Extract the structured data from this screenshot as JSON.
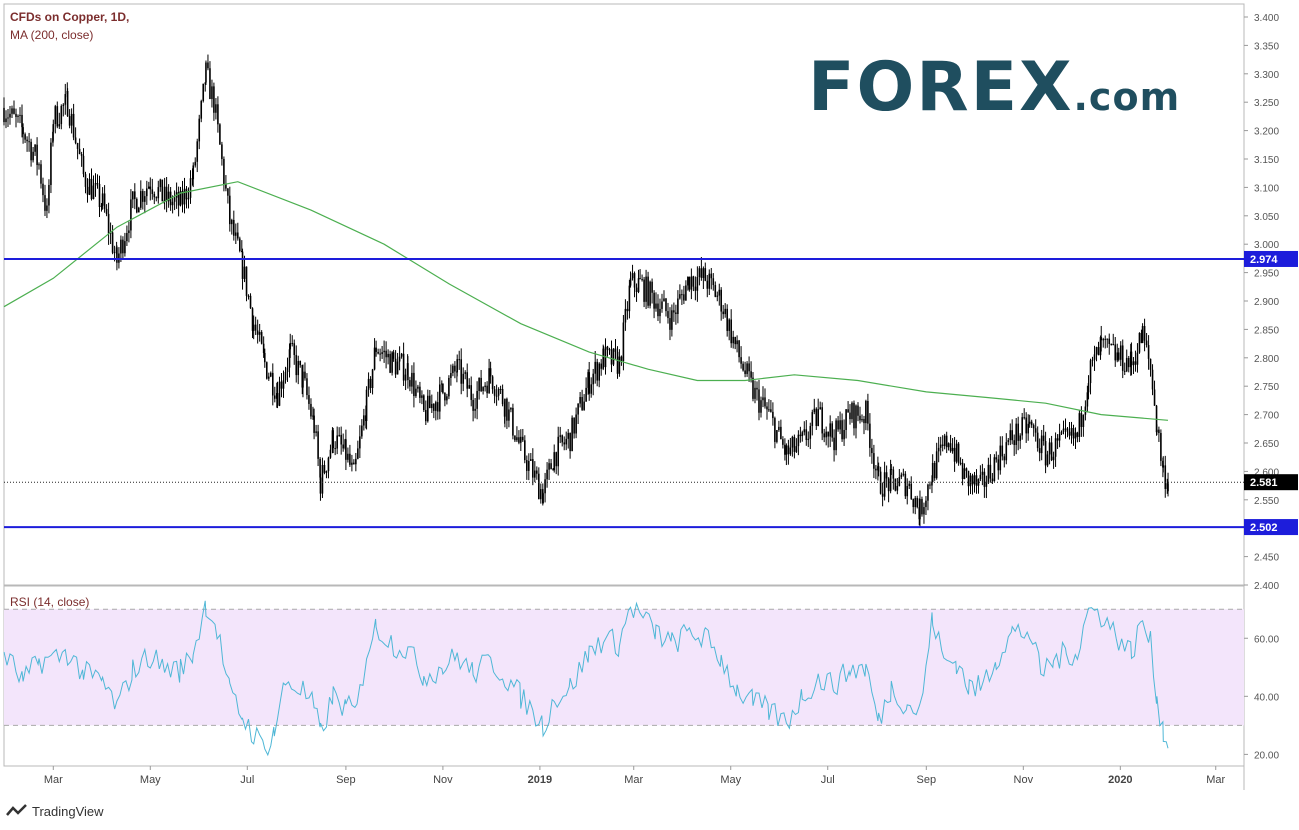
{
  "legend": {
    "symbol": "CFDs on Copper, 1D,",
    "ma": "MA (200, close)",
    "rsi": "RSI (14, close)"
  },
  "logo": {
    "main": "FOREX",
    "suffix": ".com"
  },
  "footer": {
    "brand": "TradingView"
  },
  "colors": {
    "candle": "#000000",
    "ma": "#4caf50",
    "level": "#1d1ddb",
    "rsi": "#4fb7d6",
    "rsi_band": "#f3e5fb",
    "logo": "#1f4e5f",
    "logo_accent": "#7cc242"
  },
  "chart_data": [
    {
      "type": "candlestick",
      "title": "CFDs on Copper, 1D,",
      "x_tick_labels": [
        "Mar",
        "May",
        "Jul",
        "Sep",
        "Nov",
        "2019",
        "Mar",
        "May",
        "Jul",
        "Sep",
        "Nov",
        "2020",
        "Mar"
      ],
      "y_tick_labels": [
        "3.400",
        "3.350",
        "3.300",
        "3.250",
        "3.200",
        "3.150",
        "3.100",
        "3.050",
        "3.000",
        "2.950",
        "2.900",
        "2.850",
        "2.800",
        "2.750",
        "2.700",
        "2.650",
        "2.600",
        "2.550",
        "2.500",
        "2.450",
        "2.400"
      ],
      "ylim": [
        2.4,
        3.4
      ],
      "x_range": [
        "2018-01-29",
        "2020-03-15"
      ],
      "price_path": [
        [
          "2018-01-29",
          3.24
        ],
        [
          "2018-02-10",
          3.2
        ],
        [
          "2018-02-20",
          3.14
        ],
        [
          "2018-02-25",
          3.05
        ],
        [
          "2018-03-01",
          3.22
        ],
        [
          "2018-03-10",
          3.25
        ],
        [
          "2018-03-20",
          3.12
        ],
        [
          "2018-04-01",
          3.07
        ],
        [
          "2018-04-10",
          2.97
        ],
        [
          "2018-04-20",
          3.07
        ],
        [
          "2018-05-01",
          3.11
        ],
        [
          "2018-05-10",
          3.08
        ],
        [
          "2018-05-20",
          3.07
        ],
        [
          "2018-05-28",
          3.12
        ],
        [
          "2018-06-05",
          3.3
        ],
        [
          "2018-06-10",
          3.25
        ],
        [
          "2018-06-20",
          3.04
        ],
        [
          "2018-06-28",
          2.96
        ],
        [
          "2018-07-05",
          2.86
        ],
        [
          "2018-07-12",
          2.79
        ],
        [
          "2018-07-20",
          2.74
        ],
        [
          "2018-07-28",
          2.81
        ],
        [
          "2018-08-05",
          2.76
        ],
        [
          "2018-08-12",
          2.68
        ],
        [
          "2018-08-16",
          2.58
        ],
        [
          "2018-08-24",
          2.66
        ],
        [
          "2018-09-01",
          2.63
        ],
        [
          "2018-09-06",
          2.59
        ],
        [
          "2018-09-14",
          2.72
        ],
        [
          "2018-09-20",
          2.82
        ],
        [
          "2018-10-01",
          2.79
        ],
        [
          "2018-10-10",
          2.78
        ],
        [
          "2018-10-20",
          2.7
        ],
        [
          "2018-11-01",
          2.74
        ],
        [
          "2018-11-10",
          2.78
        ],
        [
          "2018-11-20",
          2.73
        ],
        [
          "2018-12-01",
          2.77
        ],
        [
          "2018-12-10",
          2.72
        ],
        [
          "2018-12-20",
          2.64
        ],
        [
          "2019-01-03",
          2.56
        ],
        [
          "2019-01-10",
          2.63
        ],
        [
          "2019-01-20",
          2.66
        ],
        [
          "2019-02-01",
          2.76
        ],
        [
          "2019-02-10",
          2.8
        ],
        [
          "2019-02-20",
          2.79
        ],
        [
          "2019-02-27",
          2.93
        ],
        [
          "2019-03-05",
          2.93
        ],
        [
          "2019-03-15",
          2.9
        ],
        [
          "2019-03-25",
          2.87
        ],
        [
          "2019-04-05",
          2.94
        ],
        [
          "2019-04-15",
          2.94
        ],
        [
          "2019-04-25",
          2.9
        ],
        [
          "2019-05-05",
          2.81
        ],
        [
          "2019-05-15",
          2.74
        ],
        [
          "2019-05-25",
          2.7
        ],
        [
          "2019-06-05",
          2.63
        ],
        [
          "2019-06-15",
          2.65
        ],
        [
          "2019-06-25",
          2.7
        ],
        [
          "2019-07-05",
          2.66
        ],
        [
          "2019-07-15",
          2.7
        ],
        [
          "2019-07-25",
          2.7
        ],
        [
          "2019-08-02",
          2.58
        ],
        [
          "2019-08-10",
          2.58
        ],
        [
          "2019-08-20",
          2.58
        ],
        [
          "2019-08-28",
          2.53
        ],
        [
          "2019-09-05",
          2.6
        ],
        [
          "2019-09-15",
          2.66
        ],
        [
          "2019-09-25",
          2.59
        ],
        [
          "2019-10-05",
          2.57
        ],
        [
          "2019-10-15",
          2.62
        ],
        [
          "2019-10-25",
          2.66
        ],
        [
          "2019-11-05",
          2.68
        ],
        [
          "2019-11-15",
          2.63
        ],
        [
          "2019-11-25",
          2.65
        ],
        [
          "2019-12-05",
          2.66
        ],
        [
          "2019-12-12",
          2.77
        ],
        [
          "2019-12-20",
          2.82
        ],
        [
          "2019-12-31",
          2.8
        ],
        [
          "2020-01-08",
          2.79
        ],
        [
          "2020-01-15",
          2.84
        ],
        [
          "2020-01-20",
          2.78
        ],
        [
          "2020-01-24",
          2.68
        ],
        [
          "2020-01-28",
          2.6
        ],
        [
          "2020-01-31",
          2.581
        ]
      ],
      "ma_label": "MA (200, close)",
      "ma_path": [
        [
          "2018-01-29",
          2.89
        ],
        [
          "2018-03-01",
          2.94
        ],
        [
          "2018-04-10",
          3.03
        ],
        [
          "2018-05-20",
          3.09
        ],
        [
          "2018-06-25",
          3.11
        ],
        [
          "2018-08-10",
          3.06
        ],
        [
          "2018-09-25",
          3.0
        ],
        [
          "2018-11-05",
          2.93
        ],
        [
          "2018-12-20",
          2.86
        ],
        [
          "2019-02-01",
          2.81
        ],
        [
          "2019-03-10",
          2.78
        ],
        [
          "2019-04-10",
          2.76
        ],
        [
          "2019-05-10",
          2.76
        ],
        [
          "2019-06-10",
          2.77
        ],
        [
          "2019-07-20",
          2.76
        ],
        [
          "2019-09-01",
          2.74
        ],
        [
          "2019-10-10",
          2.73
        ],
        [
          "2019-11-15",
          2.72
        ],
        [
          "2019-12-20",
          2.7
        ],
        [
          "2020-01-31",
          2.69
        ]
      ],
      "levels": [
        2.974,
        2.502
      ],
      "last_price": 2.581,
      "price_labels": [
        "2.974",
        "2.502",
        "2.581"
      ]
    },
    {
      "type": "line",
      "title": "RSI (14, close)",
      "y_tick_labels": [
        "60.00",
        "40.00",
        "20.00"
      ],
      "ylim": [
        16,
        78
      ],
      "band": [
        30,
        70
      ],
      "rsi_path": [
        [
          "2018-01-29",
          55
        ],
        [
          "2018-02-10",
          45
        ],
        [
          "2018-02-20",
          52
        ],
        [
          "2018-03-01",
          53
        ],
        [
          "2018-03-10",
          55
        ],
        [
          "2018-03-20",
          48
        ],
        [
          "2018-04-01",
          45
        ],
        [
          "2018-04-10",
          36
        ],
        [
          "2018-04-20",
          49
        ],
        [
          "2018-05-01",
          54
        ],
        [
          "2018-05-10",
          50
        ],
        [
          "2018-05-20",
          49
        ],
        [
          "2018-05-28",
          55
        ],
        [
          "2018-06-05",
          72
        ],
        [
          "2018-06-12",
          63
        ],
        [
          "2018-06-20",
          41
        ],
        [
          "2018-06-28",
          33
        ],
        [
          "2018-07-05",
          27
        ],
        [
          "2018-07-12",
          22
        ],
        [
          "2018-07-18",
          28
        ],
        [
          "2018-07-25",
          45
        ],
        [
          "2018-08-05",
          42
        ],
        [
          "2018-08-12",
          36
        ],
        [
          "2018-08-16",
          27
        ],
        [
          "2018-08-24",
          40
        ],
        [
          "2018-09-01",
          36
        ],
        [
          "2018-09-08",
          35
        ],
        [
          "2018-09-14",
          55
        ],
        [
          "2018-09-20",
          64
        ],
        [
          "2018-10-01",
          58
        ],
        [
          "2018-10-10",
          56
        ],
        [
          "2018-10-20",
          47
        ],
        [
          "2018-11-01",
          50
        ],
        [
          "2018-11-10",
          54
        ],
        [
          "2018-11-20",
          48
        ],
        [
          "2018-12-01",
          52
        ],
        [
          "2018-12-10",
          47
        ],
        [
          "2018-12-20",
          40
        ],
        [
          "2019-01-03",
          30
        ],
        [
          "2019-01-10",
          39
        ],
        [
          "2019-01-20",
          43
        ],
        [
          "2019-02-01",
          55
        ],
        [
          "2019-02-10",
          60
        ],
        [
          "2019-02-20",
          58
        ],
        [
          "2019-02-27",
          71
        ],
        [
          "2019-03-05",
          68
        ],
        [
          "2019-03-15",
          62
        ],
        [
          "2019-03-25",
          58
        ],
        [
          "2019-04-05",
          62
        ],
        [
          "2019-04-15",
          60
        ],
        [
          "2019-04-25",
          53
        ],
        [
          "2019-05-05",
          42
        ],
        [
          "2019-05-15",
          38
        ],
        [
          "2019-05-25",
          35
        ],
        [
          "2019-06-05",
          31
        ],
        [
          "2019-06-15",
          40
        ],
        [
          "2019-06-25",
          46
        ],
        [
          "2019-07-05",
          44
        ],
        [
          "2019-07-15",
          49
        ],
        [
          "2019-07-25",
          50
        ],
        [
          "2019-08-02",
          31
        ],
        [
          "2019-08-10",
          43
        ],
        [
          "2019-08-20",
          37
        ],
        [
          "2019-08-28",
          35
        ],
        [
          "2019-09-05",
          67
        ],
        [
          "2019-09-12",
          52
        ],
        [
          "2019-09-20",
          52
        ],
        [
          "2019-09-28",
          43
        ],
        [
          "2019-10-05",
          43
        ],
        [
          "2019-10-15",
          53
        ],
        [
          "2019-10-25",
          62
        ],
        [
          "2019-11-05",
          62
        ],
        [
          "2019-11-12",
          48
        ],
        [
          "2019-11-20",
          52
        ],
        [
          "2019-11-28",
          55
        ],
        [
          "2019-12-05",
          55
        ],
        [
          "2019-12-12",
          70
        ],
        [
          "2019-12-20",
          68
        ],
        [
          "2019-12-31",
          60
        ],
        [
          "2020-01-08",
          55
        ],
        [
          "2020-01-15",
          66
        ],
        [
          "2020-01-20",
          58
        ],
        [
          "2020-01-24",
          40
        ],
        [
          "2020-01-28",
          28
        ],
        [
          "2020-01-31",
          24
        ]
      ]
    }
  ]
}
